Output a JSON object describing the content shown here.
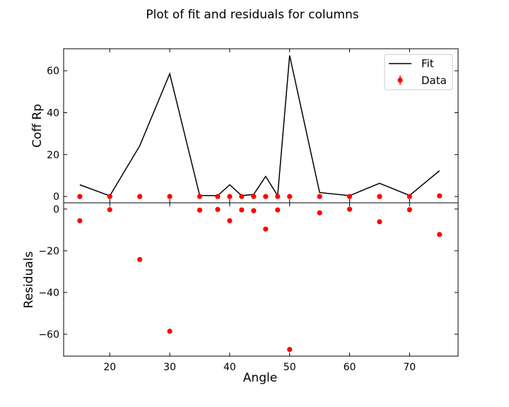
{
  "chart_data": {
    "type": "line",
    "title": "Plot of fit and residuals for columns",
    "xlabel": "Angle",
    "xlim": [
      12.3,
      78.1
    ],
    "xticks": [
      20,
      30,
      40,
      50,
      60,
      70
    ],
    "top": {
      "ylabel": "Coff Rp",
      "ylim": [
        -3,
        70.5
      ],
      "yticks": [
        0,
        20,
        40,
        60
      ],
      "legend_position": "upper-right",
      "series": [
        {
          "name": "Fit",
          "kind": "line",
          "color": "#000000",
          "x": [
            15,
            20,
            25,
            30,
            35,
            38,
            40,
            42,
            44,
            46,
            48,
            50,
            55,
            60,
            65,
            70,
            75
          ],
          "y": [
            5.6,
            0.3,
            24.2,
            58.6,
            0.5,
            0.4,
            5.6,
            0.4,
            1.0,
            9.6,
            0.4,
            67.3,
            1.9,
            0.4,
            6.3,
            0.5,
            12.3
          ]
        },
        {
          "name": "Data",
          "kind": "scatter",
          "color": "#ff0000",
          "x": [
            15,
            20,
            25,
            30,
            35,
            38,
            40,
            42,
            44,
            46,
            48,
            50,
            55,
            60,
            65,
            70,
            75
          ],
          "y": [
            0,
            0,
            0,
            0,
            0,
            0,
            0,
            0,
            0,
            0,
            0,
            0,
            0,
            0,
            0,
            0,
            0.3
          ]
        }
      ]
    },
    "bottom": {
      "ylabel": "Residuals",
      "ylim": [
        -70.5,
        3
      ],
      "yticks": [
        0,
        -20,
        -40,
        -60
      ],
      "series": [
        {
          "name": "Residuals",
          "kind": "scatter",
          "color": "#ff0000",
          "x": [
            15,
            20,
            25,
            30,
            35,
            38,
            40,
            42,
            44,
            46,
            48,
            50,
            55,
            60,
            65,
            70,
            75
          ],
          "y": [
            -5.6,
            -0.3,
            -24.2,
            -58.6,
            -0.5,
            -0.2,
            -5.6,
            -0.4,
            -0.8,
            -9.6,
            -0.4,
            -67.3,
            -1.8,
            -0.1,
            -6.1,
            -0.3,
            -12.2
          ]
        }
      ]
    }
  }
}
